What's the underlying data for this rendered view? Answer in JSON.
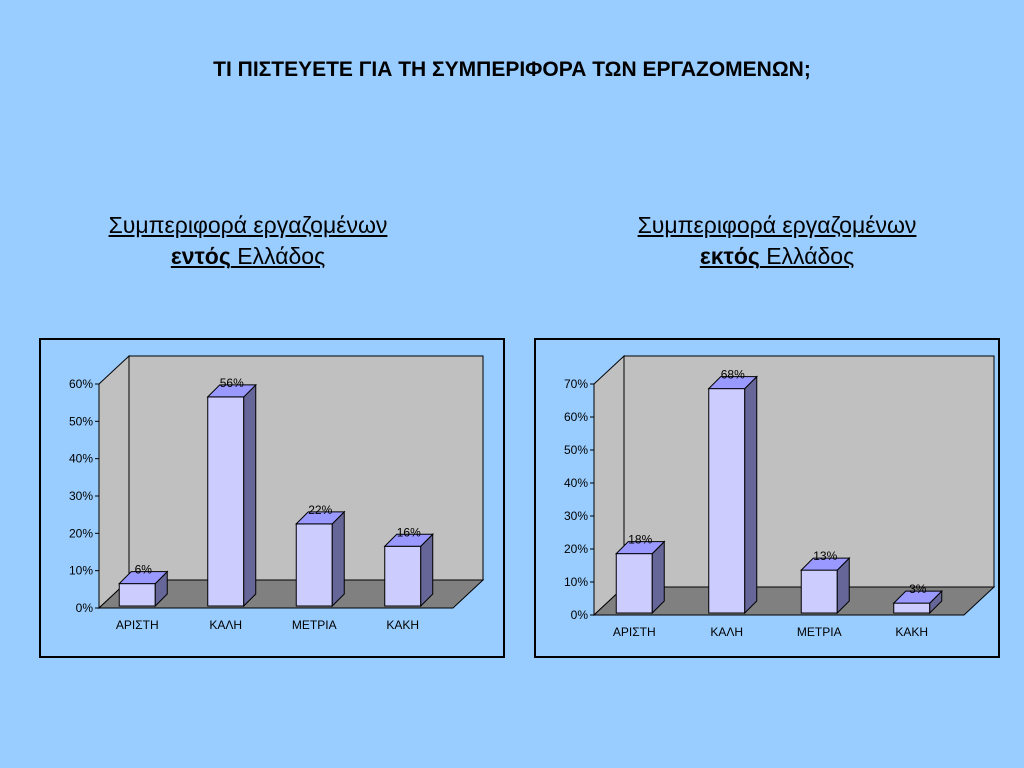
{
  "title": "ΤΙ ΠΙΣΤΕΥΕΤΕ ΓΙΑ ΤΗ ΣΥΜΠΕΡΙΦΟΡΑ ΤΩΝ ΕΡΓΑΖΟΜΕΝΩΝ;",
  "left_subtitle": {
    "line1": "Συμπεριφορά εργαζομένων",
    "bold_word": "εντός",
    "rest": " Ελλάδος"
  },
  "right_subtitle": {
    "line1": "Συμπεριφορά εργαζομένων",
    "bold_word": "εκτός",
    "rest": " Ελλάδος"
  },
  "colors": {
    "background": "#99ccff",
    "wall": "#c0c0c0",
    "floor": "#808080",
    "bar_front": "#ccccff",
    "bar_side": "#666699",
    "bar_top": "#9999ff"
  },
  "chart_data": [
    {
      "type": "bar",
      "categories": [
        "ΑΡΙΣΤΗ",
        "ΚΑΛΗ",
        "ΜΕΤΡΙΑ",
        "ΚΑΚΗ"
      ],
      "values": [
        6,
        56,
        22,
        16
      ],
      "value_labels": [
        "6%",
        "56%",
        "22%",
        "16%"
      ],
      "ylim": [
        0,
        60
      ],
      "yticks": [
        "0%",
        "10%",
        "20%",
        "30%",
        "40%",
        "50%",
        "60%"
      ],
      "grid": false,
      "three_d": true
    },
    {
      "type": "bar",
      "categories": [
        "ΑΡΙΣΤΗ",
        "ΚΑΛΗ",
        "ΜΕΤΡΙΑ",
        "ΚΑΚΗ"
      ],
      "values": [
        18,
        68,
        13,
        3
      ],
      "value_labels": [
        "18%",
        "68%",
        "13%",
        "3%"
      ],
      "ylim": [
        0,
        70
      ],
      "yticks": [
        "0%",
        "10%",
        "20%",
        "30%",
        "40%",
        "50%",
        "60%",
        "70%"
      ],
      "grid": false,
      "three_d": true
    }
  ]
}
